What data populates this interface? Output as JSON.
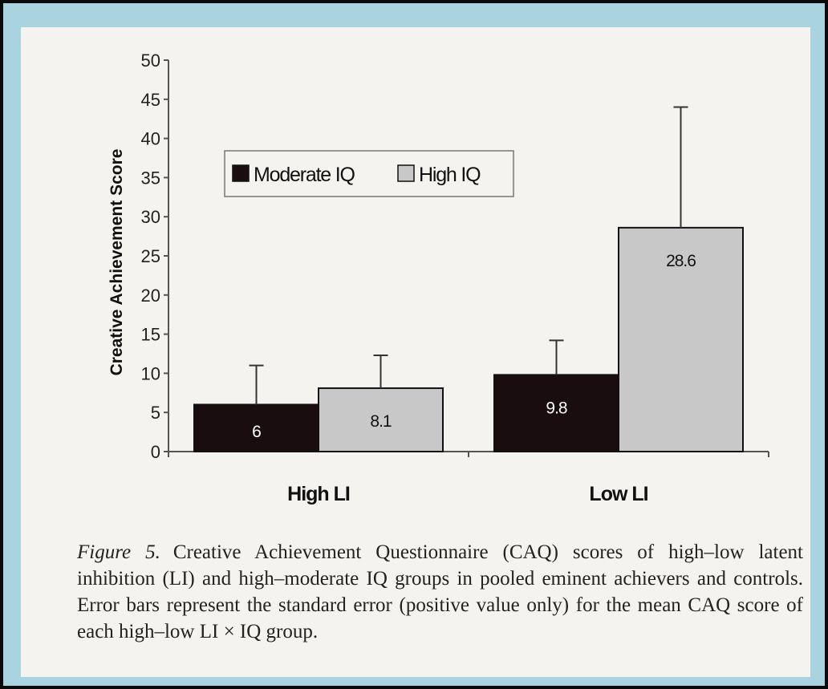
{
  "chart_data": {
    "type": "bar",
    "categories": [
      "High LI",
      "Low LI"
    ],
    "series": [
      {
        "name": "Moderate IQ",
        "color": "#1a0d10",
        "values": [
          6,
          9.8
        ],
        "error_upper": [
          11,
          14.2
        ],
        "label_color": "#ffffff"
      },
      {
        "name": "High IQ",
        "color": "#c8c8c8",
        "values": [
          8.1,
          28.6
        ],
        "error_upper": [
          12.3,
          44
        ],
        "label_color": "#111111"
      }
    ],
    "data_labels": [
      [
        "6",
        "9.8"
      ],
      [
        "8.1",
        "28.6"
      ]
    ],
    "title": "",
    "xlabel": "",
    "ylabel": "Creative Achievement Score",
    "ylim": [
      0,
      50
    ],
    "yticks": [
      0,
      5,
      10,
      15,
      20,
      25,
      30,
      35,
      40,
      45,
      50
    ],
    "grid": false,
    "legend_position": "top-left"
  },
  "caption": {
    "figure_label": "Figure 5.",
    "text": "Creative Achievement Questionnaire (CAQ) scores of high–low latent inhibition (LI) and high–moderate IQ groups in pooled eminent achievers and controls. Error bars represent the standard error (positive value only) for the mean CAQ score of each high–low LI × IQ group."
  }
}
